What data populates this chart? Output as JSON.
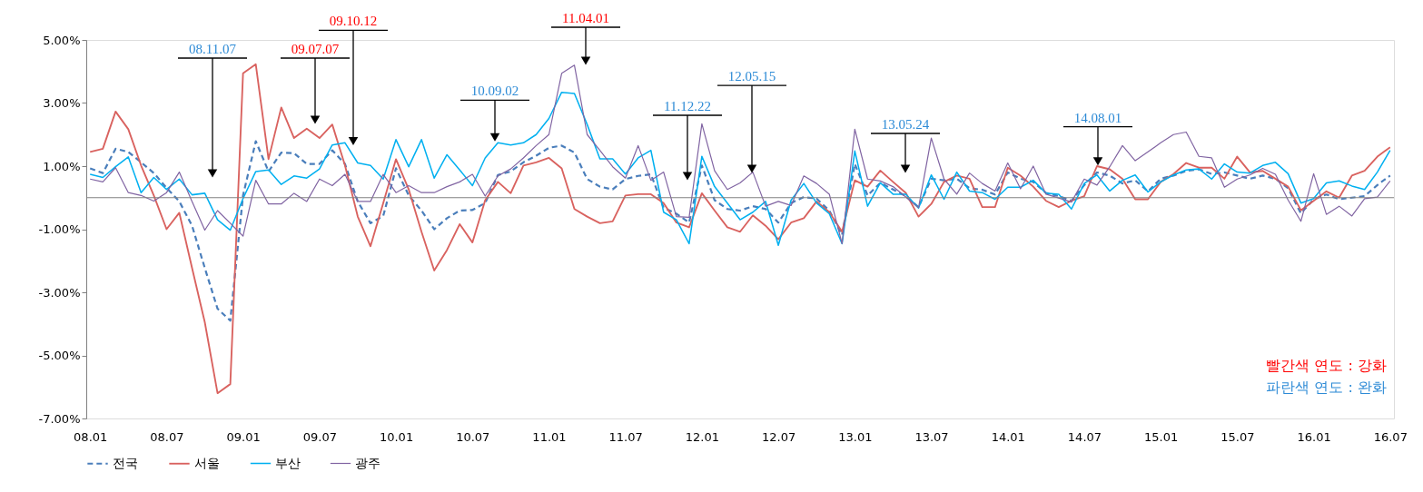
{
  "chart_data": {
    "type": "line",
    "categories": [
      "08.01",
      null,
      null,
      null,
      null,
      null,
      "08.07",
      null,
      null,
      null,
      null,
      null,
      "09.01",
      null,
      null,
      null,
      null,
      null,
      "09.07",
      null,
      null,
      null,
      null,
      null,
      "10.01",
      null,
      null,
      null,
      null,
      null,
      "10.07",
      null,
      null,
      null,
      null,
      null,
      "11.01",
      null,
      null,
      null,
      null,
      null,
      "11.07",
      null,
      null,
      null,
      null,
      null,
      "12.01",
      null,
      null,
      null,
      null,
      null,
      "12.07",
      null,
      null,
      null,
      null,
      null,
      "13.01",
      null,
      null,
      null,
      null,
      null,
      "13.07",
      null,
      null,
      null,
      null,
      null,
      "14.01",
      null,
      null,
      null,
      null,
      null,
      "14.07",
      null,
      null,
      null,
      null,
      null,
      "15.01",
      null,
      null,
      null,
      null,
      null,
      "15.07",
      null,
      null,
      null,
      null,
      null,
      "16.01",
      null,
      null,
      null,
      null,
      null,
      "16.07"
    ],
    "series": [
      {
        "name": "전국",
        "color": "#4a7ebb",
        "line_style": "dashed",
        "values": [
          0.93,
          0.78,
          1.55,
          1.45,
          1.12,
          0.78,
          0.31,
          -0.12,
          -0.89,
          -2.23,
          -3.52,
          -3.9,
          0.07,
          1.79,
          0.83,
          1.43,
          1.41,
          1.07,
          1.07,
          1.5,
          1.07,
          -0.12,
          -0.81,
          -0.58,
          0.93,
          0.07,
          -0.41,
          -1.0,
          -0.65,
          -0.41,
          -0.39,
          -0.17,
          0.72,
          0.83,
          1.12,
          1.33,
          1.58,
          1.65,
          1.43,
          0.59,
          0.35,
          0.26,
          0.59,
          0.69,
          0.74,
          -0.32,
          -0.51,
          -0.79,
          1.02,
          -0.08,
          -0.36,
          -0.41,
          -0.27,
          -0.36,
          -0.79,
          -0.17,
          0.02,
          -0.03,
          -0.41,
          -1.18,
          1.07,
          0.07,
          0.47,
          0.26,
          0.05,
          -0.3,
          0.6,
          0.55,
          0.6,
          0.3,
          0.25,
          0.1,
          0.8,
          0.6,
          0.5,
          0.15,
          0.05,
          -0.1,
          0.4,
          0.8,
          0.7,
          0.45,
          0.55,
          0.2,
          0.6,
          0.7,
          0.85,
          0.9,
          0.75,
          0.8,
          0.7,
          0.6,
          0.7,
          0.6,
          0.3,
          -0.5,
          -0.05,
          0.1,
          -0.05,
          0.0,
          0.05,
          0.4,
          0.7
        ]
      },
      {
        "name": "서울",
        "color": "#d9625f",
        "line_style": "solid",
        "values": [
          1.45,
          1.55,
          2.73,
          2.17,
          1.02,
          0.07,
          -1.0,
          -0.48,
          -2.23,
          -3.95,
          -6.2,
          -5.91,
          3.94,
          4.23,
          1.22,
          2.86,
          1.89,
          2.19,
          1.89,
          2.32,
          1.02,
          -0.6,
          -1.54,
          -0.17,
          1.22,
          0.26,
          -1.08,
          -2.31,
          -1.66,
          -0.84,
          -1.42,
          -0.08,
          0.5,
          0.14,
          1.02,
          1.12,
          1.26,
          0.93,
          -0.36,
          -0.6,
          -0.81,
          -0.75,
          0.07,
          0.11,
          0.11,
          -0.17,
          -0.79,
          -0.94,
          0.14,
          -0.41,
          -0.94,
          -1.08,
          -0.56,
          -0.89,
          -1.32,
          -0.79,
          -0.65,
          -0.12,
          -0.46,
          -1.08,
          0.55,
          0.35,
          0.86,
          0.5,
          0.15,
          -0.6,
          -0.2,
          0.5,
          0.7,
          0.6,
          -0.3,
          -0.3,
          0.95,
          0.7,
          0.35,
          -0.1,
          -0.3,
          -0.1,
          0.05,
          1.0,
          0.9,
          0.6,
          -0.05,
          -0.05,
          0.5,
          0.75,
          1.1,
          0.95,
          0.95,
          0.6,
          1.3,
          0.8,
          0.85,
          0.6,
          0.35,
          -0.4,
          -0.1,
          0.2,
          0.0,
          0.7,
          0.85,
          1.3,
          1.6
        ]
      },
      {
        "name": "부산",
        "color": "#00b0f0",
        "line_style": "solid",
        "values": [
          0.74,
          0.64,
          0.98,
          1.29,
          0.16,
          0.64,
          0.26,
          0.59,
          0.09,
          0.14,
          -0.7,
          -1.03,
          -0.03,
          0.83,
          0.88,
          0.42,
          0.69,
          0.62,
          0.91,
          1.67,
          1.74,
          1.1,
          1.02,
          0.59,
          1.84,
          0.98,
          1.84,
          0.62,
          1.36,
          0.88,
          0.38,
          1.26,
          1.74,
          1.67,
          1.74,
          2.0,
          2.51,
          3.34,
          3.3,
          2.32,
          1.23,
          1.23,
          0.75,
          1.26,
          1.5,
          -0.46,
          -0.7,
          -1.46,
          1.31,
          0.35,
          -0.17,
          -0.7,
          -0.46,
          -0.12,
          -1.51,
          -0.08,
          0.45,
          -0.17,
          -0.51,
          -1.46,
          1.48,
          -0.27,
          0.47,
          0.11,
          0.11,
          -0.33,
          0.72,
          -0.05,
          0.81,
          0.21,
          0.16,
          -0.05,
          0.33,
          0.33,
          0.55,
          0.14,
          0.11,
          -0.36,
          0.45,
          0.72,
          0.21,
          0.55,
          0.72,
          0.18,
          0.5,
          0.72,
          0.88,
          0.91,
          0.59,
          1.07,
          0.81,
          0.78,
          1.02,
          1.12,
          0.76,
          -0.17,
          -0.03,
          0.47,
          0.53,
          0.37,
          0.26,
          0.81,
          1.5
        ]
      },
      {
        "name": "광주",
        "color": "#8064a2",
        "line_style": "solid",
        "values": [
          0.59,
          0.5,
          0.95,
          0.16,
          0.07,
          -0.11,
          0.16,
          0.81,
          -0.12,
          -1.03,
          -0.41,
          -0.81,
          -1.22,
          0.55,
          -0.2,
          -0.2,
          0.14,
          -0.12,
          0.59,
          0.38,
          0.74,
          -0.12,
          -0.12,
          0.74,
          0.16,
          0.38,
          0.16,
          0.16,
          0.35,
          0.5,
          0.74,
          0.05,
          0.69,
          0.91,
          1.26,
          1.65,
          2.0,
          3.94,
          4.2,
          2.0,
          1.5,
          0.98,
          0.62,
          1.65,
          0.55,
          0.81,
          -0.6,
          -0.62,
          2.34,
          0.85,
          0.26,
          0.47,
          0.81,
          -0.27,
          -0.12,
          -0.25,
          0.69,
          0.45,
          0.11,
          -1.46,
          2.17,
          0.59,
          0.53,
          0.35,
          0.02,
          -0.32,
          1.89,
          0.59,
          0.11,
          0.78,
          0.45,
          0.21,
          1.1,
          0.28,
          1.0,
          0.11,
          -0.01,
          -0.14,
          0.59,
          0.4,
          0.98,
          1.65,
          1.17,
          1.45,
          1.74,
          2.0,
          2.08,
          1.31,
          1.26,
          0.33,
          0.59,
          0.72,
          0.93,
          0.74,
          -0.08,
          -0.75,
          0.76,
          -0.53,
          -0.27,
          -0.58,
          -0.03,
          0.02,
          0.53
        ]
      }
    ],
    "ylim": [
      -7,
      5
    ],
    "yticks": [
      {
        "value": -7,
        "label": "-7.00%"
      },
      {
        "value": -5,
        "label": "-5.00%"
      },
      {
        "value": -3,
        "label": "-3.00%"
      },
      {
        "value": -1,
        "label": "-1.00%"
      },
      {
        "value": 1,
        "label": "1.00%"
      },
      {
        "value": 3,
        "label": "3.00%"
      },
      {
        "value": 5,
        "label": "5.00%"
      }
    ],
    "ref_lines": [
      {
        "axis": "y",
        "value": 0,
        "color": "#808080"
      }
    ],
    "annotations": [
      "08.11.07",
      "09.07.07",
      {
        "text": "09.10.12",
        "y": 1.62
      },
      {
        "text": "10.09.02",
        "y": 1.74
      },
      "11.04.01",
      "11.12.22",
      {
        "text": "12.05.15",
        "y": 0.74
      },
      "13.05.24",
      {
        "text": "14.08.01",
        "y": 0.98
      },
      "빨간색 연도 : 강화",
      "파란색 연도 : 완화"
    ],
    "grid": false,
    "legend": "bottom"
  }
}
